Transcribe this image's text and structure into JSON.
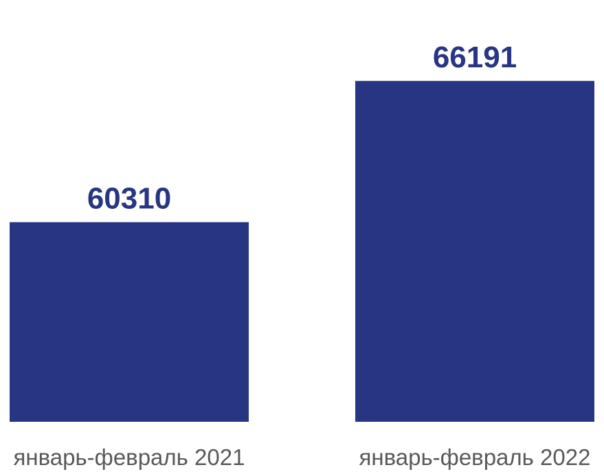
{
  "chart_data": {
    "type": "bar",
    "categories": [
      "январь-февраль 2021",
      "январь-февраль 2022"
    ],
    "values": [
      60310,
      66191
    ],
    "ylim": [
      52000,
      67500
    ],
    "grid": false,
    "legend": "none",
    "colors": {
      "bar": "#283583",
      "value_label": "#283583",
      "category_label": "#595959",
      "background": "#ffffff"
    }
  }
}
